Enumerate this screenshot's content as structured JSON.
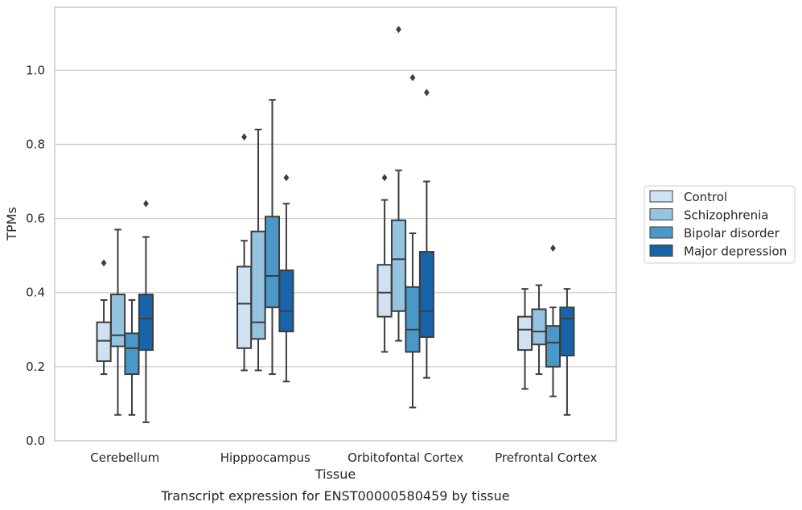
{
  "chart_data": {
    "type": "box",
    "title": "",
    "caption": "Transcript expression for ENST00000580459 by tissue",
    "xlabel": "Tissue",
    "ylabel": "TPMs",
    "ylim": [
      0.0,
      1.17
    ],
    "yticks": [
      "0.0",
      "0.2",
      "0.4",
      "0.6",
      "0.8",
      "1.0"
    ],
    "grid": "horizontal",
    "legend_position": "right",
    "categories": [
      "Cerebellum",
      "Hipppocampus",
      "Orbitofontal Cortex",
      "Prefrontal Cortex"
    ],
    "series": [
      {
        "name": "Control",
        "color": "#d0e1f2",
        "boxes": [
          {
            "whisker_low": 0.18,
            "q1": 0.215,
            "median": 0.27,
            "q3": 0.32,
            "whisker_high": 0.38,
            "outliers": [
              0.48
            ]
          },
          {
            "whisker_low": 0.19,
            "q1": 0.25,
            "median": 0.37,
            "q3": 0.47,
            "whisker_high": 0.54,
            "outliers": [
              0.82
            ]
          },
          {
            "whisker_low": 0.24,
            "q1": 0.335,
            "median": 0.4,
            "q3": 0.475,
            "whisker_high": 0.65,
            "outliers": [
              0.71
            ]
          },
          {
            "whisker_low": 0.14,
            "q1": 0.245,
            "median": 0.3,
            "q3": 0.335,
            "whisker_high": 0.41,
            "outliers": []
          }
        ]
      },
      {
        "name": "Schizophrenia",
        "color": "#94c4df",
        "boxes": [
          {
            "whisker_low": 0.07,
            "q1": 0.255,
            "median": 0.285,
            "q3": 0.395,
            "whisker_high": 0.57,
            "outliers": []
          },
          {
            "whisker_low": 0.19,
            "q1": 0.275,
            "median": 0.32,
            "q3": 0.565,
            "whisker_high": 0.84,
            "outliers": []
          },
          {
            "whisker_low": 0.27,
            "q1": 0.35,
            "median": 0.49,
            "q3": 0.595,
            "whisker_high": 0.73,
            "outliers": [
              1.11
            ]
          },
          {
            "whisker_low": 0.18,
            "q1": 0.26,
            "median": 0.295,
            "q3": 0.355,
            "whisker_high": 0.42,
            "outliers": []
          }
        ]
      },
      {
        "name": "Bipolar disorder",
        "color": "#4a98c9",
        "boxes": [
          {
            "whisker_low": 0.07,
            "q1": 0.18,
            "median": 0.25,
            "q3": 0.29,
            "whisker_high": 0.38,
            "outliers": []
          },
          {
            "whisker_low": 0.18,
            "q1": 0.36,
            "median": 0.445,
            "q3": 0.605,
            "whisker_high": 0.92,
            "outliers": []
          },
          {
            "whisker_low": 0.09,
            "q1": 0.24,
            "median": 0.3,
            "q3": 0.415,
            "whisker_high": 0.56,
            "outliers": [
              0.98
            ]
          },
          {
            "whisker_low": 0.12,
            "q1": 0.2,
            "median": 0.265,
            "q3": 0.31,
            "whisker_high": 0.36,
            "outliers": [
              0.52
            ]
          }
        ]
      },
      {
        "name": "Major depression",
        "color": "#1764ab",
        "boxes": [
          {
            "whisker_low": 0.05,
            "q1": 0.245,
            "median": 0.33,
            "q3": 0.395,
            "whisker_high": 0.55,
            "outliers": [
              0.64
            ]
          },
          {
            "whisker_low": 0.16,
            "q1": 0.295,
            "median": 0.35,
            "q3": 0.46,
            "whisker_high": 0.64,
            "outliers": [
              0.71
            ]
          },
          {
            "whisker_low": 0.17,
            "q1": 0.28,
            "median": 0.35,
            "q3": 0.51,
            "whisker_high": 0.7,
            "outliers": [
              0.94
            ]
          },
          {
            "whisker_low": 0.07,
            "q1": 0.23,
            "median": 0.33,
            "q3": 0.36,
            "whisker_high": 0.41,
            "outliers": []
          }
        ]
      }
    ]
  }
}
